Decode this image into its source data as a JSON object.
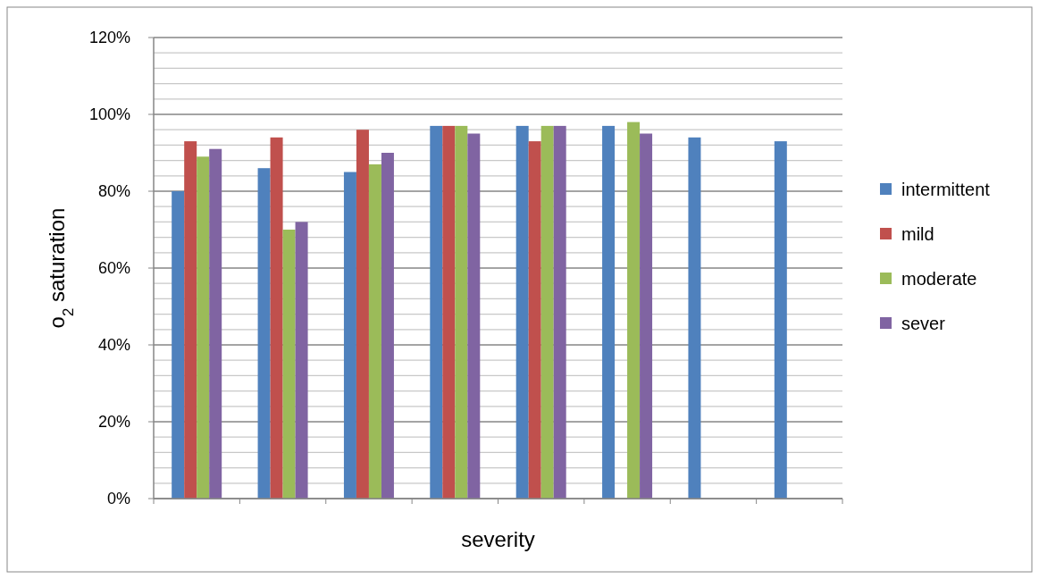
{
  "chart_data": {
    "type": "bar",
    "xlabel": "severity",
    "ylabel": "o$_{2}$ saturation",
    "categories": [
      null,
      null,
      null,
      null,
      null,
      null,
      null,
      null
    ],
    "series": [
      {
        "name": "intermittent",
        "color": "#4f81bd",
        "values": [
          80,
          86,
          85,
          97,
          97,
          97,
          94,
          93
        ]
      },
      {
        "name": "mild",
        "color": "#c0504d",
        "values": [
          93,
          94,
          96,
          97,
          93,
          null,
          null,
          null
        ]
      },
      {
        "name": "moderate",
        "color": "#9bbb59",
        "values": [
          89,
          70,
          87,
          97,
          97,
          98,
          null,
          null
        ]
      },
      {
        "name": "sever",
        "color": "#8064a2",
        "values": [
          91,
          72,
          90,
          95,
          97,
          95,
          null,
          null
        ]
      }
    ],
    "ylim": [
      0,
      120
    ],
    "yticks": [
      {
        "value": 0,
        "label": "0%"
      },
      {
        "value": 4,
        "label": null
      },
      {
        "value": 8,
        "label": null
      },
      {
        "value": 12,
        "label": null
      },
      {
        "value": 16,
        "label": null
      },
      {
        "value": 20,
        "label": "20%"
      },
      {
        "value": 24,
        "label": null
      },
      {
        "value": 28,
        "label": null
      },
      {
        "value": 32,
        "label": null
      },
      {
        "value": 36,
        "label": null
      },
      {
        "value": 40,
        "label": "40%"
      },
      {
        "value": 44,
        "label": null
      },
      {
        "value": 48,
        "label": null
      },
      {
        "value": 52,
        "label": null
      },
      {
        "value": 56,
        "label": null
      },
      {
        "value": 60,
        "label": "60%"
      },
      {
        "value": 64,
        "label": null
      },
      {
        "value": 68,
        "label": null
      },
      {
        "value": 72,
        "label": null
      },
      {
        "value": 76,
        "label": null
      },
      {
        "value": 80,
        "label": "80%"
      },
      {
        "value": 84,
        "label": null
      },
      {
        "value": 88,
        "label": null
      },
      {
        "value": 92,
        "label": null
      },
      {
        "value": 96,
        "label": null
      },
      {
        "value": 100,
        "label": "100%"
      },
      {
        "value": 104,
        "label": null
      },
      {
        "value": 108,
        "label": null
      },
      {
        "value": 112,
        "label": null
      },
      {
        "value": 116,
        "label": null
      },
      {
        "value": 120,
        "label": "120%"
      }
    ],
    "grid": "y",
    "legend": "right"
  }
}
